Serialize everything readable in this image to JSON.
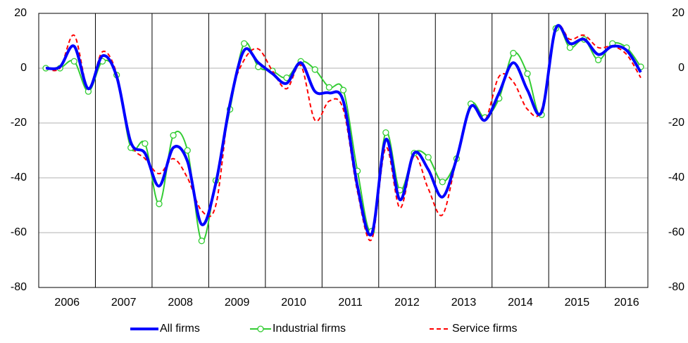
{
  "chart_data": {
    "type": "line",
    "x": [
      2006.125,
      2006.375,
      2006.625,
      2006.875,
      2007.125,
      2007.375,
      2007.625,
      2007.875,
      2008.125,
      2008.375,
      2008.625,
      2008.875,
      2009.125,
      2009.375,
      2009.625,
      2009.875,
      2010.125,
      2010.375,
      2010.625,
      2010.875,
      2011.125,
      2011.375,
      2011.625,
      2011.875,
      2012.125,
      2012.375,
      2012.625,
      2012.875,
      2013.125,
      2013.375,
      2013.625,
      2013.875,
      2014.125,
      2014.375,
      2014.625,
      2014.875,
      2015.125,
      2015.375,
      2015.625,
      2015.875,
      2016.125,
      2016.375,
      2016.625
    ],
    "xlim": [
      2006,
      2016.75
    ],
    "xticks": [
      {
        "value": 2006.5,
        "label": "2006"
      },
      {
        "value": 2007.5,
        "label": "2007"
      },
      {
        "value": 2008.5,
        "label": "2008"
      },
      {
        "value": 2009.5,
        "label": "2009"
      },
      {
        "value": 2010.5,
        "label": "2010"
      },
      {
        "value": 2011.5,
        "label": "2011"
      },
      {
        "value": 2012.5,
        "label": "2012"
      },
      {
        "value": 2013.5,
        "label": "2013"
      },
      {
        "value": 2014.5,
        "label": "2014"
      },
      {
        "value": 2015.5,
        "label": "2015"
      },
      {
        "value": 2016.375,
        "label": "2016"
      }
    ],
    "year_lines": [
      2007,
      2008,
      2009,
      2010,
      2011,
      2012,
      2013,
      2014,
      2015,
      2016
    ],
    "ylim": [
      -80,
      20
    ],
    "yticks": [
      -80,
      -60,
      -40,
      -20,
      0,
      20
    ],
    "y2lim": [
      -80,
      20
    ],
    "y2ticks": [
      -80,
      -60,
      -40,
      -20,
      0,
      20
    ],
    "grid": true,
    "smooth": true,
    "legend": "bottom",
    "series": [
      {
        "name": "All firms",
        "color": "#0000ff",
        "width": 4,
        "dashed": false,
        "marker": "none",
        "values": [
          0,
          0.5,
          8,
          -7.5,
          4.5,
          -3,
          -27,
          -31,
          -43,
          -29,
          -34,
          -57,
          -42,
          -13,
          6.5,
          2,
          -2,
          -5.5,
          2,
          -8.5,
          -9,
          -12,
          -43,
          -60.5,
          -26,
          -48,
          -31,
          -37,
          -47,
          -33,
          -14,
          -19,
          -9,
          2,
          -8,
          -16,
          14.5,
          9,
          10.5,
          5,
          8,
          6.5,
          -1.5
        ]
      },
      {
        "name": "Industrial firms",
        "color": "#33cc33",
        "width": 2,
        "dashed": false,
        "marker": "circle",
        "values": [
          0,
          0,
          2.5,
          -8.5,
          2.5,
          -2.5,
          -29,
          -27.5,
          -49.5,
          -24.5,
          -30,
          -63,
          -41,
          -15,
          9,
          0.5,
          -1,
          -3.5,
          2.5,
          -0.5,
          -7,
          -8,
          -37.5,
          -59.5,
          -23.5,
          -44.5,
          -31,
          -32.5,
          -41.5,
          -33,
          -13,
          -18,
          -11,
          5.5,
          -2,
          -17,
          14.5,
          7.5,
          10.5,
          3,
          9,
          7.5,
          0.5
        ]
      },
      {
        "name": "Service firms",
        "color": "#ff0000",
        "width": 2,
        "dashed": true,
        "marker": "none",
        "values": [
          0,
          0,
          12,
          -7.5,
          6,
          -2,
          -27,
          -33,
          -38.5,
          -33,
          -40,
          -52,
          -50,
          -12,
          3,
          7,
          -1,
          -7.5,
          1,
          -19,
          -12,
          -15,
          -45,
          -62.5,
          -29,
          -51,
          -32,
          -44,
          -53.5,
          -33,
          -14,
          -19,
          -3,
          -5,
          -15,
          -15,
          14.5,
          10.5,
          12,
          7.5,
          8,
          5,
          -3.5
        ]
      }
    ]
  }
}
